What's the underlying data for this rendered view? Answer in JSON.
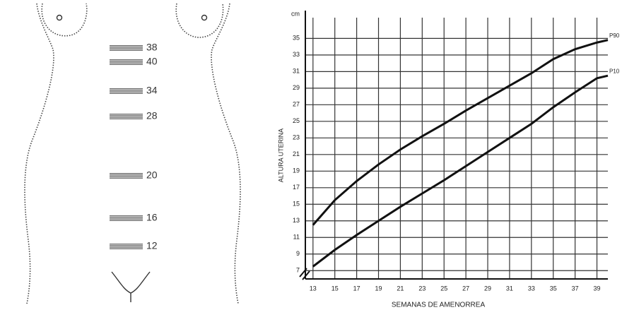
{
  "diagram": {
    "marks": [
      "38",
      "40",
      "34",
      "28",
      "20",
      "16",
      "12"
    ]
  },
  "chart_data": {
    "type": "line",
    "y_unit": "cm",
    "x_label": "SEMANAS DE AMENORREA",
    "y_label": "ALTURA UTERINA",
    "x": [
      13,
      15,
      17,
      19,
      21,
      23,
      25,
      27,
      29,
      31,
      33,
      35,
      37,
      39,
      40
    ],
    "series": [
      {
        "name": "P90",
        "color": "#111111",
        "values": [
          12.5,
          15.5,
          17.8,
          19.8,
          21.6,
          23.2,
          24.7,
          26.3,
          27.8,
          29.3,
          30.8,
          32.5,
          33.7,
          34.5,
          34.8
        ]
      },
      {
        "name": "P10",
        "color": "#111111",
        "values": [
          7.5,
          9.5,
          11.3,
          13,
          14.7,
          16.3,
          17.9,
          19.6,
          21.3,
          23,
          24.7,
          26.7,
          28.5,
          30.2,
          30.5
        ]
      }
    ],
    "xlim": [
      12.3,
      40
    ],
    "ylim": [
      6,
      37.5
    ],
    "xticks": [
      13,
      15,
      17,
      19,
      21,
      23,
      25,
      27,
      29,
      31,
      33,
      35,
      37,
      39
    ],
    "yticks": [
      7,
      9,
      11,
      13,
      15,
      17,
      19,
      21,
      23,
      25,
      27,
      29,
      31,
      33,
      35
    ],
    "grid": true
  }
}
